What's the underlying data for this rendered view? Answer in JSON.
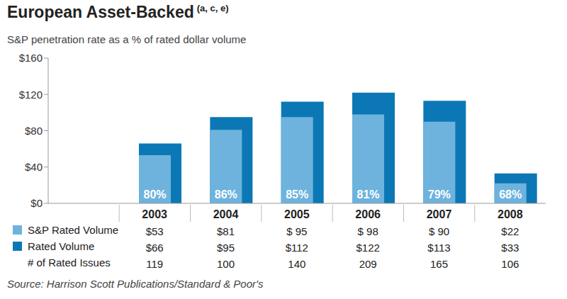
{
  "chart_data": {
    "type": "bar",
    "title": "European Asset-Backed",
    "title_note": "(a, c, e)",
    "subtitle": "S&P penetration rate as a % of rated dollar volume",
    "categories": [
      "2003",
      "2004",
      "2005",
      "2006",
      "2007",
      "2008"
    ],
    "series": [
      {
        "name": "S&P Rated Volume",
        "color": "#6db3dd",
        "values": [
          53,
          81,
          95,
          98,
          90,
          22
        ],
        "value_labels": [
          "$53",
          "$81",
          "$ 95",
          "$ 98",
          "$ 90",
          "$22"
        ]
      },
      {
        "name": "Rated Volume",
        "color": "#0b78b5",
        "values": [
          66,
          95,
          112,
          122,
          113,
          33
        ],
        "value_labels": [
          "$66",
          "$95",
          "$112",
          "$122",
          "$113",
          "$33"
        ]
      }
    ],
    "issues": {
      "name": "# of Rated Issues",
      "values": [
        119,
        100,
        140,
        209,
        165,
        106
      ]
    },
    "penetration": {
      "values": [
        80,
        86,
        85,
        81,
        79,
        68
      ],
      "value_labels": [
        "80%",
        "86%",
        "85%",
        "81%",
        "79%",
        "68%"
      ]
    },
    "ylim": [
      0,
      160
    ],
    "yticks": [
      {
        "value": 0,
        "label": "$0"
      },
      {
        "value": 40,
        "label": "$40"
      },
      {
        "value": 80,
        "label": "$80"
      },
      {
        "value": 120,
        "label": "$120"
      },
      {
        "value": 160,
        "label": "$160"
      }
    ],
    "grid": false,
    "source": "Source: Harrison Scott Publications/Standard & Poor's"
  }
}
